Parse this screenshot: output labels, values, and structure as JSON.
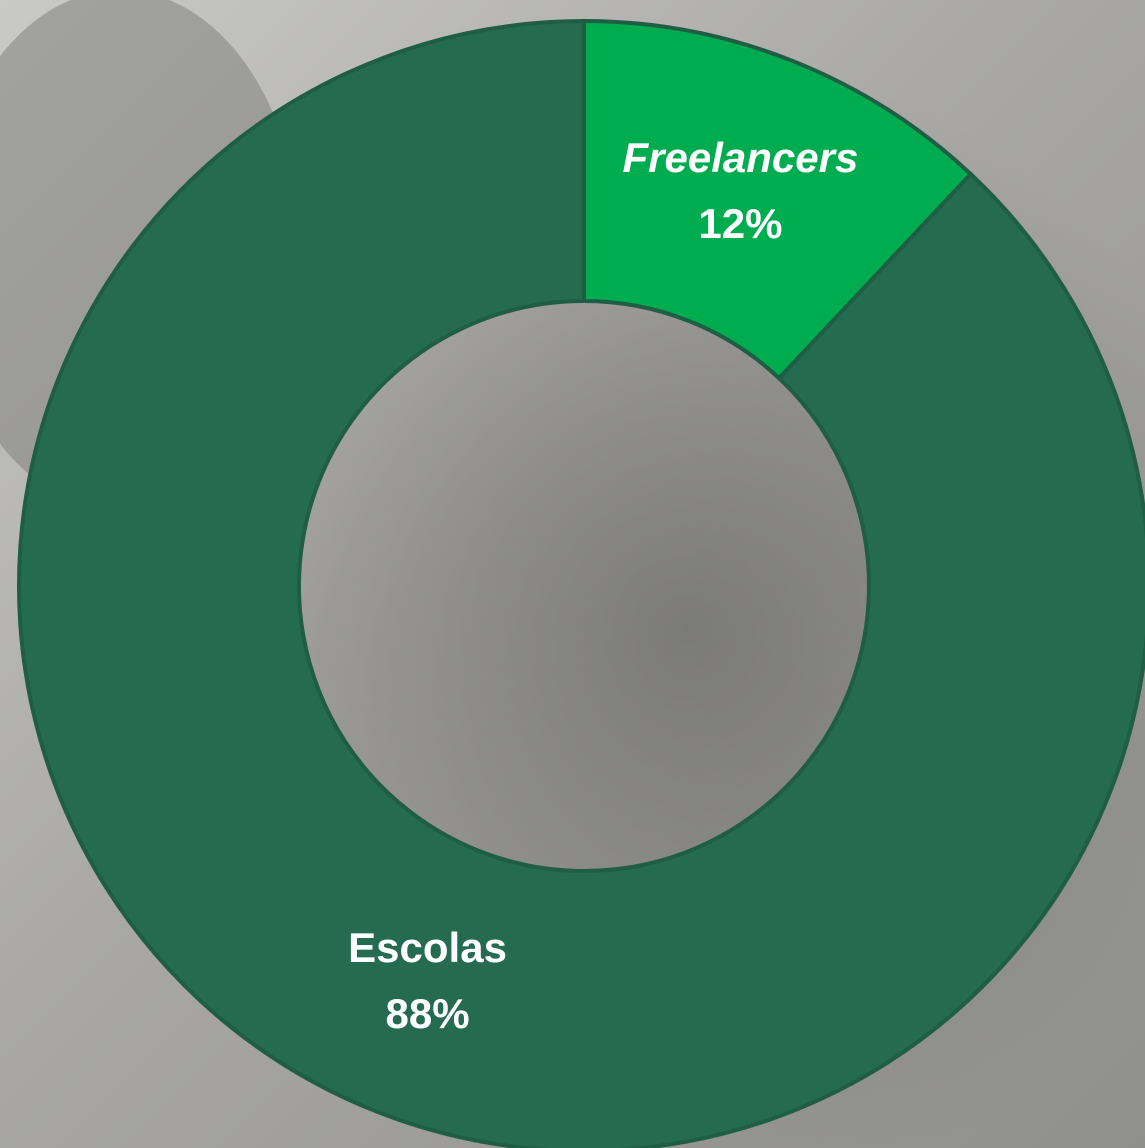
{
  "chart_data": {
    "type": "donut",
    "categories": [
      "Freelancers",
      "Escolas"
    ],
    "values": [
      12,
      88
    ],
    "value_labels": [
      "12%",
      "88%"
    ],
    "colors": [
      "#00ac50",
      "#246b50"
    ]
  }
}
